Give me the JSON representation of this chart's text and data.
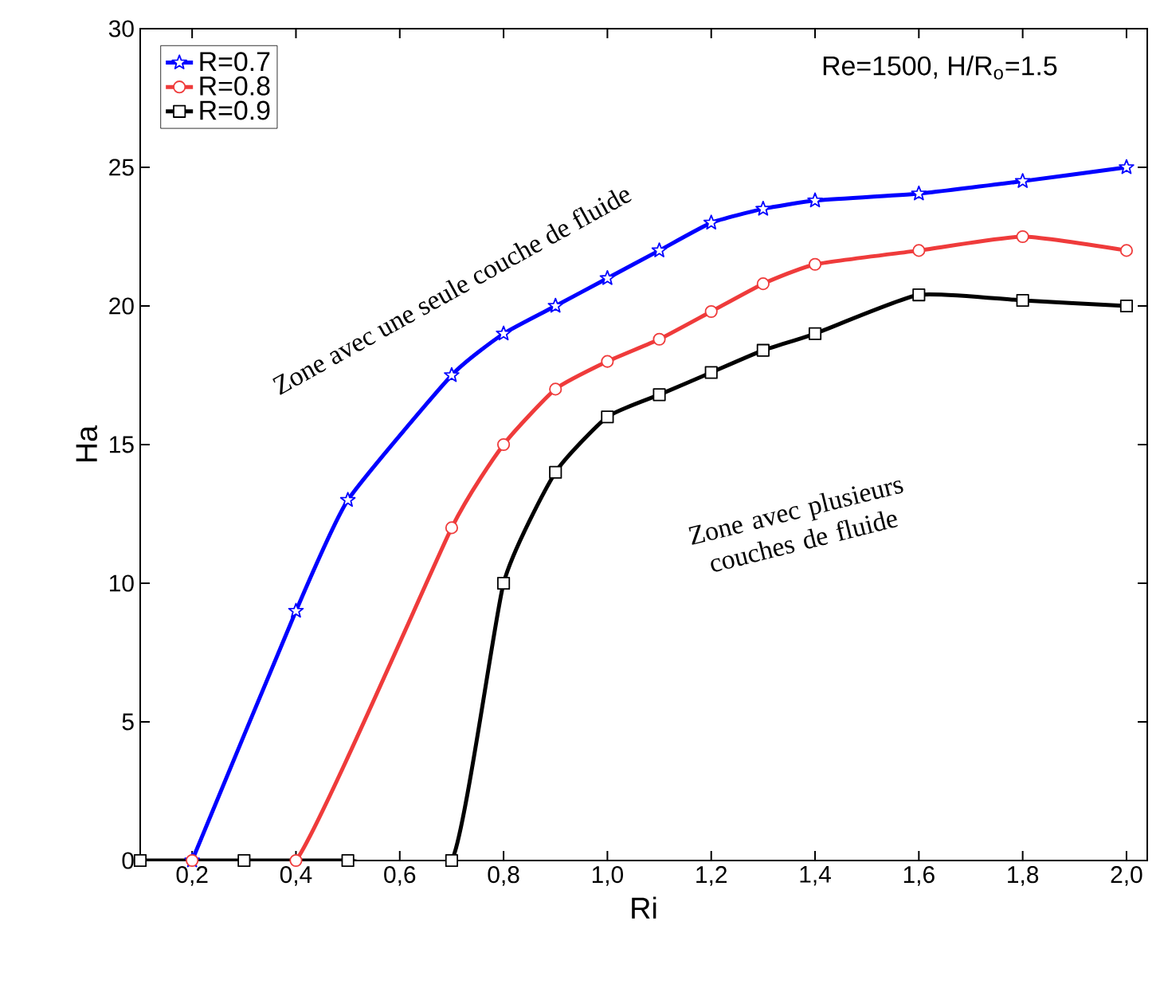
{
  "chart_data": {
    "type": "line",
    "xlabel": "Ri",
    "ylabel": "Ha",
    "annotations": [
      "Re=1500, H/R$_{o}$=1.5",
      "Zone avec une seule couche de fluide",
      "Zone avec plusieurs couches de fluide"
    ],
    "xlim": [
      0.1,
      2.04
    ],
    "ylim": [
      0,
      30
    ],
    "xticks": [
      {
        "value": 0.2,
        "label": "0,2"
      },
      {
        "value": 0.4,
        "label": "0,4"
      },
      {
        "value": 0.6,
        "label": "0,6"
      },
      {
        "value": 0.8,
        "label": "0,8"
      },
      {
        "value": 1.0,
        "label": "1,0"
      },
      {
        "value": 1.2,
        "label": "1,2"
      },
      {
        "value": 1.4,
        "label": "1,4"
      },
      {
        "value": 1.6,
        "label": "1,6"
      },
      {
        "value": 1.8,
        "label": "1,8"
      },
      {
        "value": 2.0,
        "label": "2,0"
      }
    ],
    "yticks": [
      0,
      5,
      10,
      15,
      20,
      25,
      30
    ],
    "legend": "top left",
    "grid": false,
    "line_style": "solid",
    "series": [
      {
        "name": "R=0.7",
        "color": "#0000ff",
        "marker": "star",
        "x": [
          0.2,
          0.4,
          0.5,
          0.7,
          0.8,
          0.9,
          1.0,
          1.1,
          1.2,
          1.3,
          1.4,
          1.6,
          1.8,
          2.0
        ],
        "values": [
          0,
          9,
          13,
          17.5,
          19,
          20,
          21,
          22,
          23,
          23.5,
          23.8,
          24.05,
          24.5,
          25
        ]
      },
      {
        "name": "R=0.8",
        "color": "#ef3b3b",
        "marker": "circle",
        "x": [
          0.2,
          0.4,
          0.7,
          0.8,
          0.9,
          1.0,
          1.1,
          1.2,
          1.3,
          1.4,
          1.6,
          1.8,
          2.0
        ],
        "values": [
          0,
          0,
          12,
          15,
          17,
          18,
          18.8,
          19.8,
          20.8,
          21.5,
          22,
          22.5,
          22
        ]
      },
      {
        "name": "R=0.9",
        "color": "#000000",
        "marker": "square",
        "x": [
          0.1,
          0.3,
          0.5,
          0.7,
          0.8,
          0.9,
          1.0,
          1.1,
          1.2,
          1.3,
          1.4,
          1.6,
          1.8,
          2.0
        ],
        "values": [
          0,
          0,
          0,
          0,
          10,
          14,
          16,
          16.8,
          17.6,
          18.4,
          19,
          20.4,
          20.2,
          20
        ]
      }
    ]
  }
}
